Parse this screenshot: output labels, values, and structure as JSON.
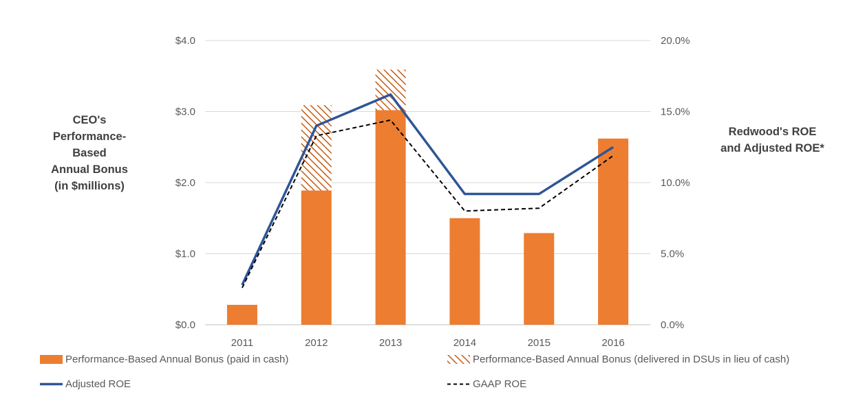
{
  "chart_data": {
    "type": "bar",
    "categories": [
      "2011",
      "2012",
      "2013",
      "2014",
      "2015",
      "2016"
    ],
    "series": [
      {
        "name": "Performance-Based Annual Bonus (paid in cash)",
        "kind": "bar",
        "axis": "left",
        "stack": "bonus",
        "color": "#ED7D31",
        "pattern": "solid",
        "values": [
          0.28,
          1.89,
          3.02,
          1.5,
          1.29,
          2.62
        ]
      },
      {
        "name": "Performance-Based Annual Bonus (delivered in DSUs in lieu of cash)",
        "kind": "bar",
        "axis": "left",
        "stack": "bonus",
        "color": "#C55A11",
        "pattern": "hatch",
        "values": [
          0,
          1.2,
          0.57,
          0,
          0,
          0
        ]
      },
      {
        "name": "Adjusted ROE",
        "kind": "line",
        "axis": "right",
        "color": "#2F5597",
        "dash": "solid",
        "values": [
          2.8,
          14.0,
          16.2,
          9.2,
          9.2,
          12.5
        ]
      },
      {
        "name": "GAAP ROE",
        "kind": "line",
        "axis": "right",
        "color": "#000000",
        "dash": "dashed",
        "values": [
          2.6,
          13.3,
          14.4,
          8.0,
          8.2,
          11.9
        ]
      }
    ],
    "left_axis": {
      "label": "CEO's\nPerformance-\nBased\nAnnual Bonus\n(in $millions)",
      "range": [
        0,
        4
      ],
      "ticks": [
        "$0.0",
        "$1.0",
        "$2.0",
        "$3.0",
        "$4.0"
      ]
    },
    "right_axis": {
      "label": "Redwood's ROE\nand Adjusted ROE*",
      "range": [
        0,
        20
      ],
      "ticks": [
        "0.0%",
        "5.0%",
        "10.0%",
        "15.0%",
        "20.0%"
      ]
    },
    "grid": true,
    "legend_position": "bottom"
  }
}
